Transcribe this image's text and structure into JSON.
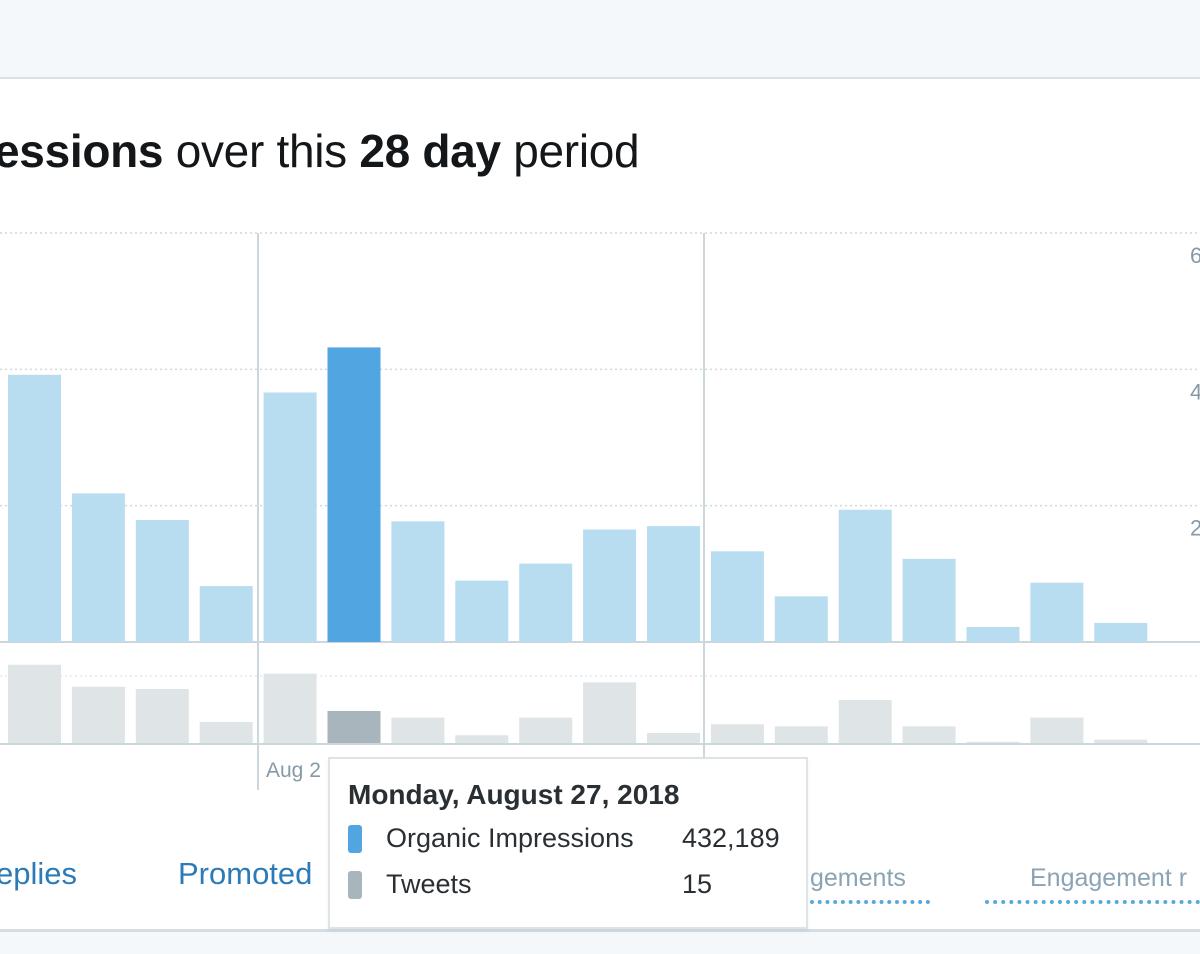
{
  "header": {
    "title_parts": {
      "bold1": "essions",
      "mid": " over this ",
      "bold2": "28 day",
      "end": " period"
    }
  },
  "chart_data": {
    "type": "bar",
    "title": "",
    "ylim": [
      0,
      600000
    ],
    "y_ticks": [
      {
        "value": 600000,
        "label": "6"
      },
      {
        "value": 400000,
        "label": "4"
      },
      {
        "value": 200000,
        "label": "2"
      }
    ],
    "grid": true,
    "date_labels": [
      "Aug 2"
    ],
    "highlight_index": 5,
    "series": [
      {
        "name": "Organic Impressions",
        "color": "#b9ddf0",
        "highlight_color": "#51a5e0",
        "values": [
          392000,
          218000,
          179000,
          82000,
          366000,
          432189,
          177000,
          90000,
          115000,
          165000,
          170000,
          133000,
          67000,
          194000,
          122000,
          22000,
          87000,
          28000
        ]
      },
      {
        "name": "Tweets",
        "color": "#dfe4e6",
        "highlight_color": "#a9b5bd",
        "ylim": [
          0,
          40
        ],
        "values": [
          36,
          26,
          25,
          10,
          32,
          15,
          12,
          4,
          12,
          28,
          5,
          9,
          8,
          20,
          8,
          1,
          12,
          2
        ]
      }
    ]
  },
  "tooltip": {
    "title": "Monday, August 27, 2018",
    "rows": [
      {
        "label": "Organic Impressions",
        "value": "432,189",
        "color": "#51a5e0"
      },
      {
        "label": "Tweets",
        "value": "15",
        "color": "#a9b5bd"
      }
    ]
  },
  "tabs": {
    "replies": "eplies",
    "promoted": "Promoted",
    "engagements": "gements",
    "engagement_rate": "Engagement r"
  }
}
